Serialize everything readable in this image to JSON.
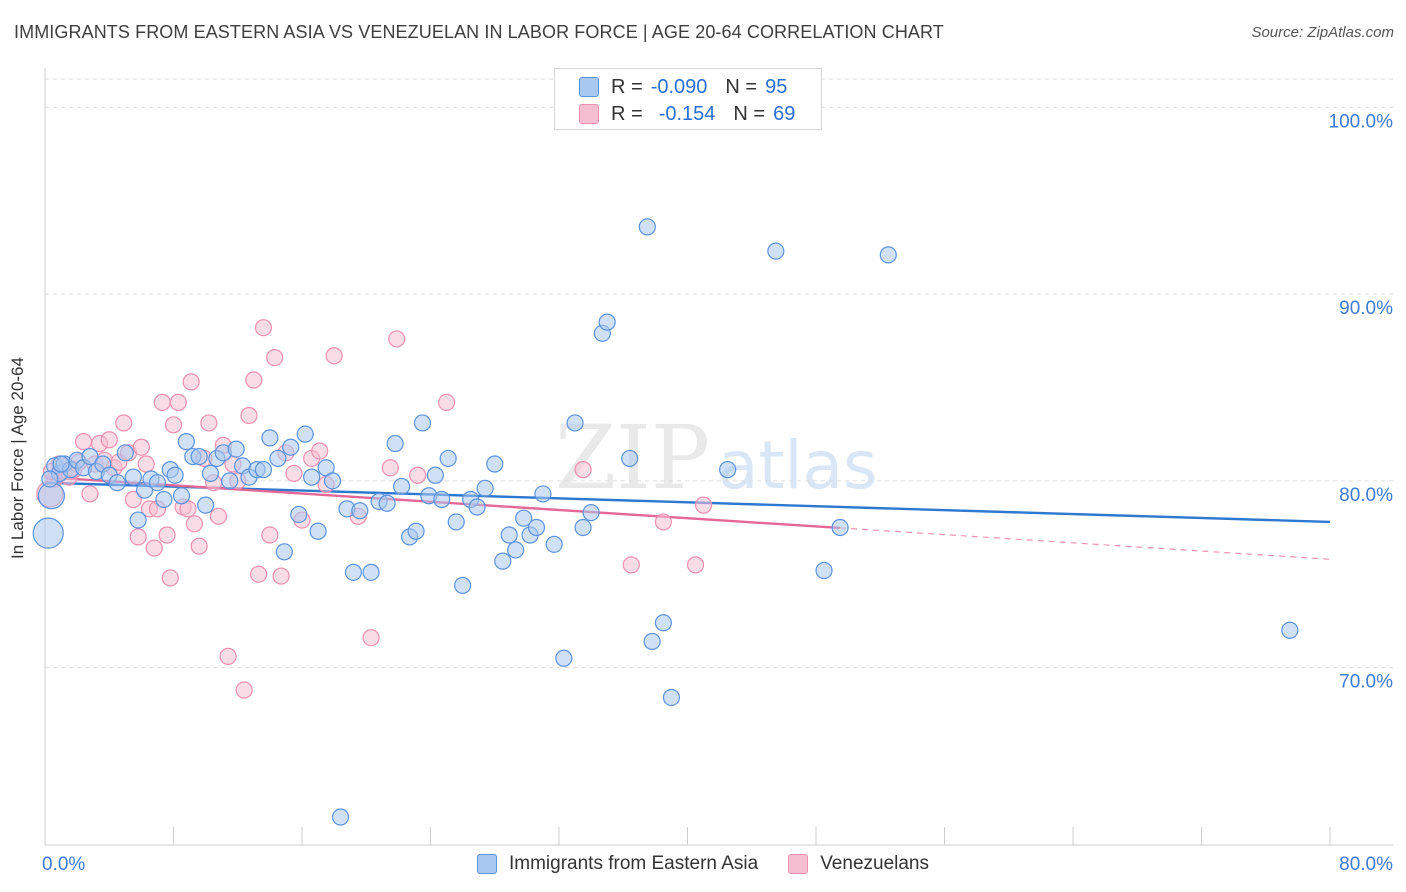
{
  "header": {
    "title": "IMMIGRANTS FROM EASTERN ASIA VS VENEZUELAN IN LABOR FORCE | AGE 20-64 CORRELATION CHART",
    "source": "Source: ZipAtlas.com"
  },
  "colors": {
    "blue_fill": "#a9c8f0",
    "blue_stroke": "#5b93dd",
    "blue_line": "#2f78d0",
    "pink_fill": "#f6bfd1",
    "pink_stroke": "#ec8fb0",
    "pink_line": "#e46795",
    "axis_text": "#3d7bd5",
    "grid": "#dcdcdc"
  },
  "legend_top": {
    "rows": [
      {
        "r_label": "R =",
        "r_value": "-0.090",
        "n_label": "N =",
        "n_value": "95"
      },
      {
        "r_label": "R =",
        "r_value": "-0.154",
        "n_label": "N =",
        "n_value": "69"
      }
    ]
  },
  "legend_bottom": {
    "items": [
      {
        "label": "Immigrants from Eastern Asia"
      },
      {
        "label": "Venezuelans"
      }
    ]
  },
  "watermark": {
    "zip": "ZIP",
    "atlas": "atlas"
  },
  "chart_data": {
    "type": "scatter",
    "title": "IMMIGRANTS FROM EASTERN ASIA VS VENEZUELAN IN LABOR FORCE | AGE 20-64 CORRELATION CHART",
    "xlabel": "",
    "ylabel": "In Labor Force | Age 20-64",
    "xlim": [
      0,
      80
    ],
    "ylim": [
      60.5,
      102
    ],
    "x_tick_labels": [
      "0.0%",
      "80.0%"
    ],
    "y_ticks": [
      {
        "value": 100,
        "label": "100.0%"
      },
      {
        "value": 90,
        "label": "90.0%"
      },
      {
        "value": 80,
        "label": "80.0%"
      },
      {
        "value": 70,
        "label": "70.0%"
      }
    ],
    "legend": "bottom-center",
    "series": [
      {
        "name": "Immigrants from Eastern Asia",
        "r": -0.09,
        "n": 95,
        "trend": {
          "x": [
            0,
            80
          ],
          "y": [
            79.9,
            77.8
          ],
          "dashed_from": null
        },
        "points": [
          [
            0.2,
            77.2,
            3
          ],
          [
            0.4,
            79.2,
            2
          ],
          [
            0.6,
            80.8,
            1
          ],
          [
            0.9,
            80.4,
            1
          ],
          [
            1.2,
            80.9,
            1
          ],
          [
            1.6,
            80.6,
            1
          ],
          [
            2.0,
            81.1,
            1
          ],
          [
            2.4,
            80.7,
            1
          ],
          [
            2.8,
            81.3,
            1
          ],
          [
            3.2,
            80.5,
            1
          ],
          [
            3.6,
            80.9,
            1
          ],
          [
            4.0,
            80.3,
            1
          ],
          [
            4.5,
            79.9,
            1
          ],
          [
            5.0,
            81.5,
            1
          ],
          [
            5.5,
            80.2,
            1
          ],
          [
            5.8,
            77.9,
            1
          ],
          [
            6.2,
            79.5,
            1
          ],
          [
            6.6,
            80.1,
            1
          ],
          [
            7.0,
            79.9,
            1
          ],
          [
            7.4,
            79.0,
            1
          ],
          [
            7.8,
            80.6,
            1
          ],
          [
            8.1,
            80.3,
            1
          ],
          [
            8.5,
            79.2,
            1
          ],
          [
            8.8,
            82.1,
            1
          ],
          [
            9.2,
            81.3,
            1
          ],
          [
            9.6,
            81.3,
            1
          ],
          [
            10.0,
            78.7,
            1
          ],
          [
            10.3,
            80.4,
            1
          ],
          [
            10.7,
            81.2,
            1
          ],
          [
            11.1,
            81.5,
            1
          ],
          [
            11.5,
            80.0,
            1
          ],
          [
            11.9,
            81.7,
            1
          ],
          [
            12.3,
            80.8,
            1
          ],
          [
            12.7,
            80.2,
            1
          ],
          [
            13.2,
            80.6,
            1
          ],
          [
            13.6,
            80.6,
            1
          ],
          [
            14.0,
            82.3,
            1
          ],
          [
            14.5,
            81.2,
            1
          ],
          [
            14.9,
            76.2,
            1
          ],
          [
            15.3,
            81.8,
            1
          ],
          [
            15.8,
            78.2,
            1
          ],
          [
            16.2,
            82.5,
            1
          ],
          [
            16.6,
            80.2,
            1
          ],
          [
            17.0,
            77.3,
            1
          ],
          [
            17.5,
            80.7,
            1
          ],
          [
            17.9,
            80.0,
            1
          ],
          [
            18.4,
            62.0,
            1
          ],
          [
            18.8,
            78.5,
            1
          ],
          [
            19.2,
            75.1,
            1
          ],
          [
            19.6,
            78.4,
            1
          ],
          [
            20.3,
            75.1,
            1
          ],
          [
            20.8,
            78.9,
            1
          ],
          [
            21.3,
            78.8,
            1
          ],
          [
            21.8,
            82.0,
            1
          ],
          [
            22.2,
            79.7,
            1
          ],
          [
            22.7,
            77.0,
            1
          ],
          [
            23.1,
            77.3,
            1
          ],
          [
            23.5,
            83.1,
            1
          ],
          [
            23.9,
            79.2,
            1
          ],
          [
            24.3,
            80.3,
            1
          ],
          [
            24.7,
            79.0,
            1
          ],
          [
            25.1,
            81.2,
            1
          ],
          [
            25.6,
            77.8,
            1
          ],
          [
            26.0,
            74.4,
            1
          ],
          [
            26.5,
            79.0,
            1
          ],
          [
            26.9,
            78.6,
            1
          ],
          [
            27.4,
            79.6,
            1
          ],
          [
            28.0,
            80.9,
            1
          ],
          [
            28.5,
            75.7,
            1
          ],
          [
            28.9,
            77.1,
            1
          ],
          [
            29.3,
            76.3,
            1
          ],
          [
            29.8,
            78.0,
            1
          ],
          [
            30.2,
            77.1,
            1
          ],
          [
            30.6,
            77.5,
            1
          ],
          [
            31.0,
            79.3,
            1
          ],
          [
            31.7,
            76.6,
            1
          ],
          [
            32.3,
            70.5,
            1
          ],
          [
            33.0,
            83.1,
            1
          ],
          [
            33.5,
            77.5,
            1
          ],
          [
            34.0,
            78.3,
            1
          ],
          [
            34.7,
            87.9,
            1
          ],
          [
            35.0,
            88.5,
            1
          ],
          [
            36.4,
            81.2,
            1
          ],
          [
            37.5,
            93.6,
            1
          ],
          [
            37.8,
            71.4,
            1
          ],
          [
            38.5,
            72.4,
            1
          ],
          [
            39.0,
            68.4,
            1
          ],
          [
            42.5,
            80.6,
            1
          ],
          [
            45.5,
            92.3,
            1
          ],
          [
            48.5,
            75.2,
            1
          ],
          [
            49.5,
            77.5,
            1
          ],
          [
            52.5,
            92.1,
            1
          ],
          [
            77.5,
            72.0,
            1
          ],
          [
            0.3,
            80.1,
            1
          ],
          [
            1.0,
            80.9,
            1
          ]
        ]
      },
      {
        "name": "Venezuelans",
        "r": -0.154,
        "n": 69,
        "trend": {
          "x": [
            0,
            80
          ],
          "y": [
            80.2,
            75.8
          ],
          "dashed_from": 49.5
        },
        "points": [
          [
            0.3,
            79.3,
            2
          ],
          [
            0.6,
            80.1,
            1
          ],
          [
            0.9,
            80.9,
            1
          ],
          [
            1.2,
            80.5,
            1
          ],
          [
            1.5,
            80.2,
            1
          ],
          [
            1.8,
            80.6,
            1
          ],
          [
            2.1,
            81.0,
            1
          ],
          [
            2.4,
            82.1,
            1
          ],
          [
            2.8,
            79.3,
            1
          ],
          [
            3.1,
            80.9,
            1
          ],
          [
            3.4,
            82.0,
            1
          ],
          [
            3.7,
            81.1,
            1
          ],
          [
            4.0,
            82.2,
            1
          ],
          [
            4.3,
            80.7,
            1
          ],
          [
            4.6,
            81.0,
            1
          ],
          [
            4.9,
            83.1,
            1
          ],
          [
            5.2,
            81.5,
            1
          ],
          [
            5.5,
            79.0,
            1
          ],
          [
            5.8,
            77.0,
            1
          ],
          [
            6.0,
            81.8,
            1
          ],
          [
            6.3,
            80.9,
            1
          ],
          [
            6.5,
            78.5,
            1
          ],
          [
            6.8,
            76.4,
            1
          ],
          [
            7.0,
            78.5,
            1
          ],
          [
            7.3,
            84.2,
            1
          ],
          [
            7.6,
            77.1,
            1
          ],
          [
            7.8,
            74.8,
            1
          ],
          [
            8.0,
            83.0,
            1
          ],
          [
            8.3,
            84.2,
            1
          ],
          [
            8.6,
            78.6,
            1
          ],
          [
            8.9,
            78.5,
            1
          ],
          [
            9.1,
            85.3,
            1
          ],
          [
            9.3,
            77.7,
            1
          ],
          [
            9.6,
            76.5,
            1
          ],
          [
            9.9,
            81.2,
            1
          ],
          [
            10.2,
            83.1,
            1
          ],
          [
            10.5,
            79.9,
            1
          ],
          [
            10.8,
            78.1,
            1
          ],
          [
            11.1,
            81.9,
            1
          ],
          [
            11.4,
            70.6,
            1
          ],
          [
            11.7,
            80.9,
            1
          ],
          [
            12.0,
            80.0,
            1
          ],
          [
            12.4,
            68.8,
            1
          ],
          [
            12.7,
            83.5,
            1
          ],
          [
            13.0,
            85.4,
            1
          ],
          [
            13.3,
            75.0,
            1
          ],
          [
            13.6,
            88.2,
            1
          ],
          [
            14.0,
            77.1,
            1
          ],
          [
            14.3,
            86.6,
            1
          ],
          [
            14.7,
            74.9,
            1
          ],
          [
            15.0,
            81.5,
            1
          ],
          [
            15.5,
            80.4,
            1
          ],
          [
            16.0,
            77.9,
            1
          ],
          [
            16.6,
            81.2,
            1
          ],
          [
            17.1,
            81.6,
            1
          ],
          [
            17.5,
            79.8,
            1
          ],
          [
            18.0,
            86.7,
            1
          ],
          [
            19.5,
            78.1,
            1
          ],
          [
            20.3,
            71.6,
            1
          ],
          [
            21.5,
            80.7,
            1
          ],
          [
            21.9,
            87.6,
            1
          ],
          [
            23.2,
            80.3,
            1
          ],
          [
            25.0,
            84.2,
            1
          ],
          [
            33.5,
            80.6,
            1
          ],
          [
            36.5,
            75.5,
            1
          ],
          [
            38.5,
            77.8,
            1
          ],
          [
            40.5,
            75.5,
            1
          ],
          [
            41.0,
            78.7,
            1
          ],
          [
            0.4,
            80.5,
            1
          ]
        ]
      }
    ]
  },
  "axis": {
    "x_min_label": "0.0%",
    "x_max_label": "80.0%"
  }
}
